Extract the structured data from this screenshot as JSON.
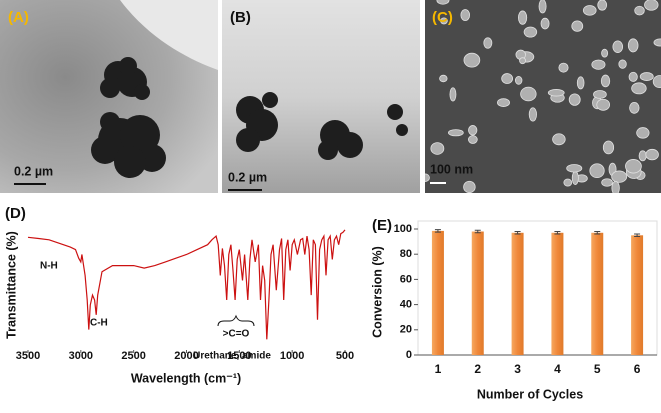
{
  "images": [
    {
      "label": "(A)",
      "scale_bar": "0.2 µm"
    },
    {
      "label": "(B)",
      "scale_bar": "0.2 µm"
    },
    {
      "label": "(C)",
      "scale_bar": "100 nm"
    }
  ],
  "chart_data": [
    {
      "type": "line",
      "label": "(D)",
      "xlabel": "Wavelength (cm⁻¹)",
      "ylabel": "Transmittance (%)",
      "color": "#cc1111",
      "xlim": [
        3500,
        500
      ],
      "xticks": [
        3500,
        3000,
        2500,
        2000,
        1500,
        1000,
        500
      ],
      "ylim": [
        0,
        100
      ],
      "annotations": [
        "N-H",
        "C-H",
        ">C=O",
        "Urethane, amide"
      ],
      "x": [
        3500,
        3400,
        3300,
        3200,
        3100,
        3050,
        3020,
        3000,
        2990,
        2960,
        2940,
        2925,
        2910,
        2890,
        2870,
        2855,
        2840,
        2800,
        2700,
        2600,
        2500,
        2400,
        2300,
        2200,
        2100,
        2000,
        1900,
        1800,
        1760,
        1720,
        1700,
        1680,
        1660,
        1640,
        1620,
        1600,
        1580,
        1560,
        1540,
        1520,
        1500,
        1470,
        1450,
        1420,
        1400,
        1380,
        1350,
        1320,
        1300,
        1280,
        1260,
        1240,
        1220,
        1200,
        1180,
        1150,
        1120,
        1100,
        1080,
        1060,
        1040,
        1020,
        1000,
        980,
        950,
        920,
        900,
        880,
        860,
        840,
        820,
        800,
        780,
        760,
        740,
        720,
        700,
        680,
        660,
        640,
        620,
        600,
        580,
        560,
        540,
        520,
        500
      ],
      "values": [
        90,
        89,
        88,
        85,
        82,
        80,
        73,
        70,
        76,
        59,
        39,
        15,
        35,
        43,
        39,
        27,
        43,
        62,
        67,
        67,
        67,
        65,
        67,
        70,
        73,
        76,
        80,
        84,
        88,
        91,
        84,
        59,
        81,
        67,
        39,
        76,
        84,
        63,
        39,
        72,
        80,
        55,
        76,
        39,
        72,
        88,
        70,
        84,
        39,
        67,
        55,
        7,
        39,
        76,
        84,
        47,
        80,
        89,
        39,
        80,
        88,
        63,
        84,
        88,
        76,
        88,
        89,
        76,
        91,
        80,
        43,
        88,
        84,
        23,
        80,
        88,
        91,
        59,
        88,
        91,
        72,
        88,
        91,
        84,
        93,
        94,
        96
      ]
    },
    {
      "type": "bar",
      "label": "(E)",
      "xlabel": "Number of Cycles",
      "ylabel": "Conversion (%)",
      "color": "#f0883a",
      "categories": [
        "1",
        "2",
        "3",
        "4",
        "5",
        "6"
      ],
      "values": [
        98.5,
        98,
        97,
        97,
        97,
        95
      ],
      "errors": [
        1,
        1,
        1,
        1,
        1,
        1
      ],
      "ylim": [
        0,
        100
      ],
      "yticks": [
        0,
        20,
        40,
        60,
        80,
        100
      ]
    }
  ]
}
